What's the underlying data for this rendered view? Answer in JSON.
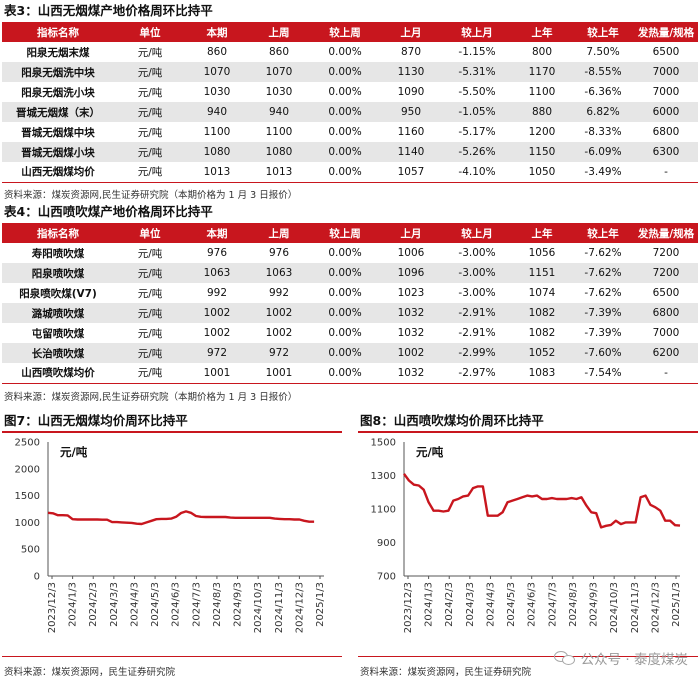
{
  "table3": {
    "title": "表3：山西无烟煤产地价格周环比持平",
    "headers": [
      "指标名称",
      "单位",
      "本期",
      "上周",
      "较上周",
      "上月",
      "较上月",
      "上年",
      "较上年",
      "发热量/规格"
    ],
    "rows": [
      [
        "阳泉无烟末煤",
        "元/吨",
        "860",
        "860",
        "0.00%",
        "870",
        "-1.15%",
        "800",
        "7.50%",
        "6500"
      ],
      [
        "阳泉无烟洗中块",
        "元/吨",
        "1070",
        "1070",
        "0.00%",
        "1130",
        "-5.31%",
        "1170",
        "-8.55%",
        "7000"
      ],
      [
        "阳泉无烟洗小块",
        "元/吨",
        "1030",
        "1030",
        "0.00%",
        "1090",
        "-5.50%",
        "1100",
        "-6.36%",
        "7000"
      ],
      [
        "晋城无烟煤（末）",
        "元/吨",
        "940",
        "940",
        "0.00%",
        "950",
        "-1.05%",
        "880",
        "6.82%",
        "6000"
      ],
      [
        "晋城无烟煤中块",
        "元/吨",
        "1100",
        "1100",
        "0.00%",
        "1160",
        "-5.17%",
        "1200",
        "-8.33%",
        "6800"
      ],
      [
        "晋城无烟煤小块",
        "元/吨",
        "1080",
        "1080",
        "0.00%",
        "1140",
        "-5.26%",
        "1150",
        "-6.09%",
        "6300"
      ],
      [
        "山西无烟煤均价",
        "元/吨",
        "1013",
        "1013",
        "0.00%",
        "1057",
        "-4.10%",
        "1050",
        "-3.49%",
        "-"
      ]
    ],
    "source": "资料来源：煤炭资源网,民生证券研究院（本期价格为 1 月 3 日报价）"
  },
  "table4": {
    "title": "表4：山西喷吹煤产地价格周环比持平",
    "headers": [
      "指标名称",
      "单位",
      "本期",
      "上周",
      "较上周",
      "上月",
      "较上月",
      "上年",
      "较上年",
      "发热量/规格"
    ],
    "rows": [
      [
        "寿阳喷吹煤",
        "元/吨",
        "976",
        "976",
        "0.00%",
        "1006",
        "-3.00%",
        "1056",
        "-7.62%",
        "7200"
      ],
      [
        "阳泉喷吹煤",
        "元/吨",
        "1063",
        "1063",
        "0.00%",
        "1096",
        "-3.00%",
        "1151",
        "-7.62%",
        "7200"
      ],
      [
        "阳泉喷吹煤(V7)",
        "元/吨",
        "992",
        "992",
        "0.00%",
        "1023",
        "-3.00%",
        "1074",
        "-7.62%",
        "6500"
      ],
      [
        "潞城喷吹煤",
        "元/吨",
        "1002",
        "1002",
        "0.00%",
        "1032",
        "-2.91%",
        "1082",
        "-7.39%",
        "6800"
      ],
      [
        "屯留喷吹煤",
        "元/吨",
        "1002",
        "1002",
        "0.00%",
        "1032",
        "-2.91%",
        "1082",
        "-7.39%",
        "7000"
      ],
      [
        "长治喷吹煤",
        "元/吨",
        "972",
        "972",
        "0.00%",
        "1002",
        "-2.99%",
        "1052",
        "-7.60%",
        "6200"
      ],
      [
        "山西喷吹煤均价",
        "元/吨",
        "1001",
        "1001",
        "0.00%",
        "1032",
        "-2.97%",
        "1083",
        "-7.54%",
        "-"
      ]
    ],
    "source": "资料来源：煤炭资源网,民生证券研究院（本期价格为 1 月 3 日报价）"
  },
  "figure7": {
    "title": "图7：山西无烟煤均价周环比持平",
    "source": "资料来源：煤炭资源网，民生证券研究院"
  },
  "figure8": {
    "title": "图8：山西喷吹煤均价周环比持平",
    "source": "资料来源：煤炭资源网，民生证券研究院"
  },
  "watermark": {
    "text": "公众号 · 泰度煤炭",
    "icon": "wechat-icon"
  },
  "colors": {
    "accent": "#c8161e",
    "stripe": "#e6e6e6"
  },
  "chart_data": [
    {
      "type": "line",
      "title": "",
      "ylabel": "元/吨",
      "ylim": [
        0,
        2500
      ],
      "yticks": [
        0,
        500,
        1000,
        1500,
        2000,
        2500
      ],
      "xlim": [
        0,
        56
      ],
      "x_tick_labels": [
        "2023/12/3",
        "2024/1/3",
        "2024/2/3",
        "2024/3/3",
        "2024/4/3",
        "2024/5/3",
        "2024/6/3",
        "2024/7/3",
        "2024/8/3",
        "2024/9/3",
        "2024/10/3",
        "2024/11/3",
        "2024/12/3",
        "2025/1/3"
      ],
      "grid": false,
      "series": [
        {
          "color": "#c8161e",
          "points": [
            [
              0,
              1180
            ],
            [
              1,
              1170
            ],
            [
              2,
              1135
            ],
            [
              3,
              1135
            ],
            [
              4,
              1130
            ],
            [
              5,
              1060
            ],
            [
              6,
              1055
            ],
            [
              7,
              1055
            ],
            [
              8,
              1055
            ],
            [
              9,
              1055
            ],
            [
              10,
              1055
            ],
            [
              11,
              1050
            ],
            [
              12,
              1050
            ],
            [
              13,
              1005
            ],
            [
              14,
              1005
            ],
            [
              15,
              1000
            ],
            [
              16,
              995
            ],
            [
              17,
              990
            ],
            [
              18,
              975
            ],
            [
              19,
              970
            ],
            [
              20,
              1000
            ],
            [
              21,
              1030
            ],
            [
              22,
              1060
            ],
            [
              23,
              1065
            ],
            [
              24,
              1065
            ],
            [
              25,
              1070
            ],
            [
              26,
              1105
            ],
            [
              27,
              1175
            ],
            [
              28,
              1205
            ],
            [
              29,
              1180
            ],
            [
              30,
              1120
            ],
            [
              31,
              1105
            ],
            [
              32,
              1100
            ],
            [
              33,
              1100
            ],
            [
              34,
              1100
            ],
            [
              35,
              1100
            ],
            [
              36,
              1100
            ],
            [
              37,
              1090
            ],
            [
              38,
              1085
            ],
            [
              39,
              1085
            ],
            [
              40,
              1085
            ],
            [
              41,
              1085
            ],
            [
              42,
              1085
            ],
            [
              43,
              1085
            ],
            [
              44,
              1085
            ],
            [
              45,
              1085
            ],
            [
              46,
              1070
            ],
            [
              47,
              1065
            ],
            [
              48,
              1060
            ],
            [
              49,
              1060
            ],
            [
              50,
              1055
            ],
            [
              51,
              1055
            ],
            [
              52,
              1030
            ],
            [
              53,
              1013
            ],
            [
              54,
              1013
            ]
          ]
        }
      ]
    },
    {
      "type": "line",
      "title": "",
      "ylabel": "元/吨",
      "ylim": [
        700,
        1500
      ],
      "yticks": [
        700,
        900,
        1100,
        1300,
        1500
      ],
      "xlim": [
        0,
        56
      ],
      "x_tick_labels": [
        "2023/12/3",
        "2024/1/3",
        "2024/2/3",
        "2024/3/3",
        "2024/4/3",
        "2024/5/3",
        "2024/6/3",
        "2024/7/3",
        "2024/8/3",
        "2024/9/3",
        "2024/10/3",
        "2024/11/3",
        "2024/12/3",
        "2025/1/3"
      ],
      "grid": false,
      "series": [
        {
          "color": "#c8161e",
          "points": [
            [
              0,
              1310
            ],
            [
              1,
              1270
            ],
            [
              2,
              1245
            ],
            [
              3,
              1240
            ],
            [
              4,
              1215
            ],
            [
              5,
              1140
            ],
            [
              6,
              1090
            ],
            [
              7,
              1090
            ],
            [
              8,
              1085
            ],
            [
              9,
              1090
            ],
            [
              10,
              1150
            ],
            [
              11,
              1160
            ],
            [
              12,
              1175
            ],
            [
              13,
              1180
            ],
            [
              14,
              1225
            ],
            [
              15,
              1235
            ],
            [
              16,
              1235
            ],
            [
              17,
              1060
            ],
            [
              18,
              1060
            ],
            [
              19,
              1060
            ],
            [
              20,
              1080
            ],
            [
              21,
              1140
            ],
            [
              22,
              1150
            ],
            [
              23,
              1160
            ],
            [
              24,
              1170
            ],
            [
              25,
              1180
            ],
            [
              26,
              1175
            ],
            [
              27,
              1180
            ],
            [
              28,
              1160
            ],
            [
              29,
              1160
            ],
            [
              30,
              1165
            ],
            [
              31,
              1160
            ],
            [
              32,
              1160
            ],
            [
              33,
              1160
            ],
            [
              34,
              1165
            ],
            [
              35,
              1160
            ],
            [
              36,
              1170
            ],
            [
              37,
              1120
            ],
            [
              38,
              1080
            ],
            [
              39,
              1075
            ],
            [
              40,
              990
            ],
            [
              41,
              1000
            ],
            [
              42,
              1005
            ],
            [
              43,
              1030
            ],
            [
              44,
              1010
            ],
            [
              45,
              1020
            ],
            [
              46,
              1020
            ],
            [
              47,
              1020
            ],
            [
              48,
              1170
            ],
            [
              49,
              1180
            ],
            [
              50,
              1125
            ],
            [
              51,
              1110
            ],
            [
              52,
              1090
            ],
            [
              53,
              1030
            ],
            [
              54,
              1030
            ],
            [
              55,
              1003
            ],
            [
              56,
              1001
            ]
          ]
        }
      ]
    }
  ]
}
